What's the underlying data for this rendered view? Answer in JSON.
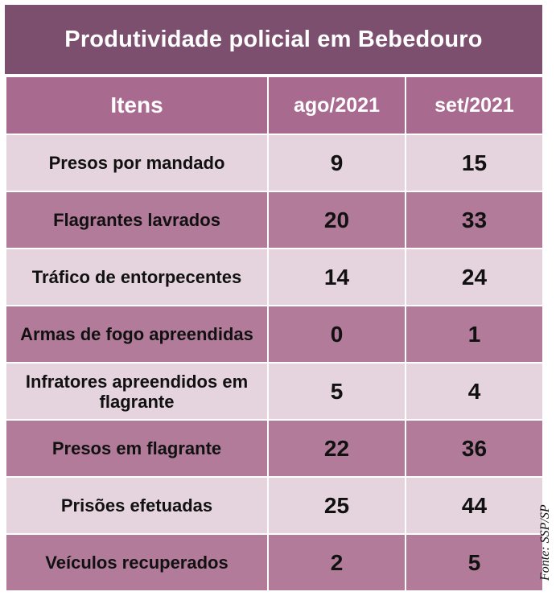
{
  "chart_data": {
    "type": "table",
    "title": "Produtividade policial em Bebedouro",
    "columns": [
      "Itens",
      "ago/2021",
      "set/2021"
    ],
    "rows": [
      {
        "item": "Presos por mandado",
        "ago": 9,
        "set": 15
      },
      {
        "item": "Flagrantes lavrados",
        "ago": 20,
        "set": 33
      },
      {
        "item": "Tráfico de entorpecentes",
        "ago": 14,
        "set": 24
      },
      {
        "item": "Armas de fogo apreendidas",
        "ago": 0,
        "set": 1
      },
      {
        "item": "Infratores apreendidos em flagrante",
        "ago": 5,
        "set": 4
      },
      {
        "item": "Presos em flagrante",
        "ago": 22,
        "set": 36
      },
      {
        "item": "Prisões efetuadas",
        "ago": 25,
        "set": 44
      },
      {
        "item": "Veículos recuperados",
        "ago": 2,
        "set": 5
      }
    ],
    "source": "Fonte: SSP/SP"
  },
  "colors": {
    "title_bg": "#7d4f6f",
    "header_bg": "#a86a8f",
    "row_light": "#e5d4dd",
    "row_dark": "#b27b9a"
  }
}
